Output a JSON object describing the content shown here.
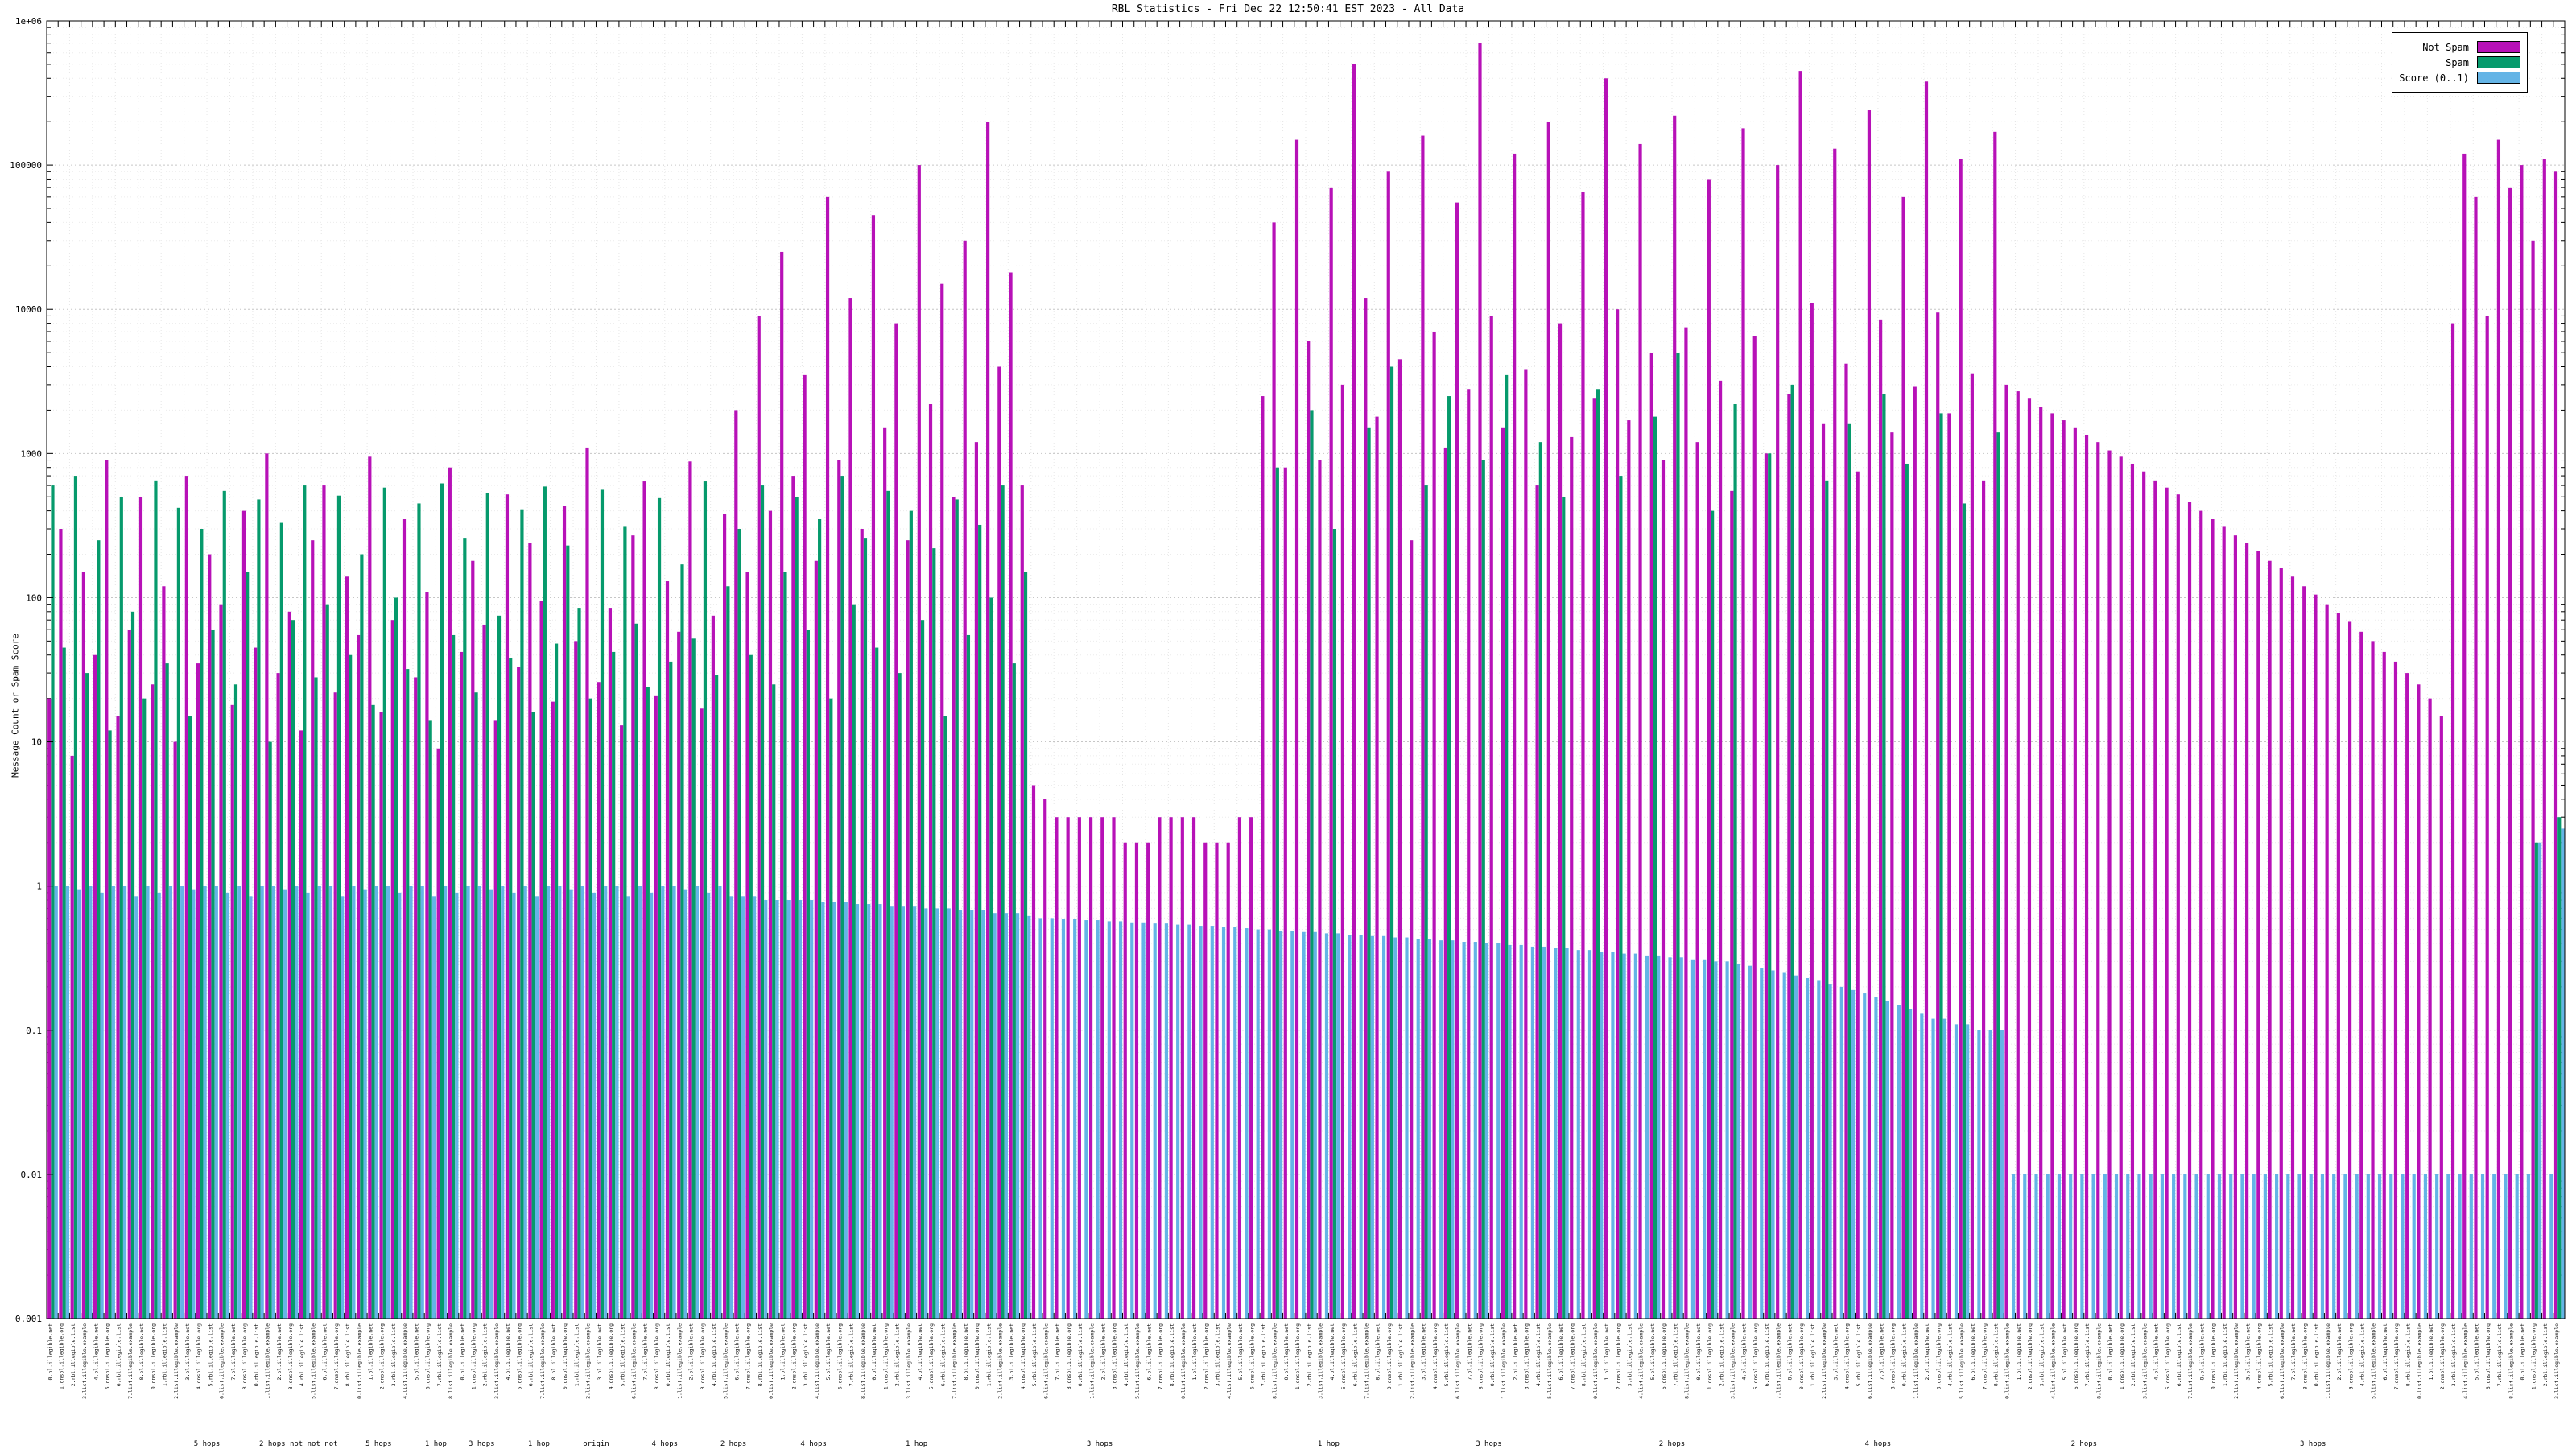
{
  "chart_data": {
    "type": "bar",
    "scale": "log",
    "title": "RBL Statistics - Fri Dec 22 12:50:41 EST 2023 - All Data",
    "ylabel": "Message Count or Spam Score",
    "xlabel": "",
    "ylim": [
      0.001,
      1000000
    ],
    "yticks": [
      "1e+06",
      "100000",
      "10000",
      "1000",
      "100",
      "10",
      "1",
      "0.1",
      "0.01",
      "0.001"
    ],
    "grid": "dotted",
    "legend_position": "top-right",
    "legend": [
      {
        "label": "Not Spam"
      },
      {
        "label": "Spam"
      },
      {
        "label": "Score (0..1)"
      }
    ],
    "x_tick_labels": {
      "legible": false,
      "placeholders": [
        "bl.illegible.net",
        "dnsbl.illegible.org",
        "rbl.illegible.list",
        "list.illegible.example"
      ]
    },
    "sub_labels": [
      {
        "text": "5 hops",
        "i": 14
      },
      {
        "text": "2 hops not not not",
        "i": 22
      },
      {
        "text": "5 hops",
        "i": 29
      },
      {
        "text": "1 hop",
        "i": 34
      },
      {
        "text": "3 hops",
        "i": 38
      },
      {
        "text": "1 hop",
        "i": 43
      },
      {
        "text": "origin",
        "i": 48
      },
      {
        "text": "4 hops",
        "i": 54
      },
      {
        "text": "2 hops",
        "i": 60
      },
      {
        "text": "4 hops",
        "i": 67
      },
      {
        "text": "1 hop",
        "i": 76
      },
      {
        "text": "3 hops",
        "i": 92
      },
      {
        "text": "1 hop",
        "i": 112
      },
      {
        "text": "3 hops",
        "i": 126
      },
      {
        "text": "2 hops",
        "i": 142
      },
      {
        "text": "4 hops",
        "i": 160
      },
      {
        "text": "2 hops",
        "i": 178
      },
      {
        "text": "3 hops",
        "i": 198
      }
    ],
    "series": [
      {
        "name": "Not Spam",
        "color": "#b711b7",
        "values": [
          20,
          300,
          8,
          150,
          40,
          900,
          15,
          60,
          500,
          25,
          120,
          10,
          700,
          35,
          200,
          90,
          18,
          400,
          45,
          1000,
          30,
          80,
          12,
          250,
          600,
          22,
          140,
          55,
          950,
          16,
          70,
          350,
          28,
          110,
          9,
          800,
          42,
          180,
          65,
          14,
          520,
          33,
          240,
          95,
          19,
          430,
          50,
          1100,
          26,
          85,
          13,
          270,
          640,
          21,
          130,
          58,
          880,
          17,
          75,
          380,
          2000,
          150,
          9000,
          400,
          25000,
          700,
          3500,
          180,
          60000,
          900,
          12000,
          300,
          45000,
          1500,
          8000,
          250,
          100000,
          2200,
          15000,
          500,
          30000,
          1200,
          200000,
          4000,
          18000,
          600,
          5,
          4,
          3,
          3,
          3,
          3,
          3,
          3,
          2,
          2,
          2,
          3,
          3,
          3,
          3,
          2,
          2,
          2,
          3,
          3,
          2500,
          40000,
          800,
          150000,
          6000,
          900,
          70000,
          3000,
          500000,
          12000,
          1800,
          90000,
          4500,
          250,
          160000,
          7000,
          1100,
          55000,
          2800,
          700000,
          9000,
          1500,
          120000,
          3800,
          600,
          200000,
          8000,
          1300,
          65000,
          2400,
          400000,
          10000,
          1700,
          140000,
          5000,
          900,
          220000,
          7500,
          1200,
          80000,
          3200,
          550,
          180000,
          6500,
          1000,
          100000,
          2600,
          450000,
          11000,
          1600,
          130000,
          4200,
          750,
          240000,
          8500,
          1400,
          60000,
          2900,
          380000,
          9500,
          1900,
          110000,
          3600,
          650,
          170000,
          3000,
          2700,
          2400,
          2100,
          1900,
          1700,
          1500,
          1350,
          1200,
          1050,
          950,
          850,
          750,
          650,
          580,
          520,
          460,
          400,
          350,
          310,
          270,
          240,
          210,
          180,
          160,
          140,
          120,
          105,
          90,
          78,
          68,
          58,
          50,
          42,
          36,
          30,
          25,
          20,
          15,
          8000,
          120000,
          60000,
          9000,
          150000,
          70000,
          100000,
          30000,
          110000,
          90000
        ]
      },
      {
        "name": "Spam",
        "color": "#069a6c",
        "values": [
          600,
          45,
          700,
          30,
          250,
          12,
          500,
          80,
          20,
          650,
          35,
          420,
          15,
          300,
          60,
          550,
          25,
          150,
          480,
          10,
          330,
          70,
          600,
          28,
          90,
          510,
          40,
          200,
          18,
          580,
          100,
          32,
          450,
          14,
          620,
          55,
          260,
          22,
          530,
          75,
          38,
          410,
          16,
          590,
          48,
          230,
          85,
          20,
          560,
          42,
          310,
          66,
          24,
          490,
          36,
          170,
          52,
          640,
          29,
          120,
          300,
          40,
          600,
          25,
          150,
          500,
          60,
          350,
          20,
          700,
          90,
          260,
          45,
          550,
          30,
          400,
          70,
          220,
          15,
          480,
          55,
          320,
          100,
          600,
          35,
          150,
          0,
          0,
          0,
          0,
          0,
          0,
          0,
          0,
          0,
          0,
          0,
          0,
          0,
          0,
          0,
          0,
          0,
          0,
          0,
          0,
          0,
          800,
          0,
          0,
          2000,
          0,
          300,
          0,
          0,
          1500,
          0,
          4000,
          0,
          0,
          600,
          0,
          2500,
          0,
          0,
          900,
          0,
          3500,
          0,
          0,
          1200,
          0,
          500,
          0,
          0,
          2800,
          0,
          700,
          0,
          0,
          1800,
          0,
          5000,
          0,
          0,
          400,
          0,
          2200,
          0,
          0,
          1000,
          0,
          3000,
          0,
          0,
          650,
          0,
          1600,
          0,
          0,
          2600,
          0,
          850,
          0,
          0,
          1900,
          0,
          450,
          0,
          0,
          1400,
          0,
          0,
          0,
          0,
          0,
          0,
          0,
          0,
          0,
          0,
          0,
          0,
          0,
          0,
          0,
          0,
          0,
          0,
          0,
          0,
          0,
          0,
          0,
          0,
          0,
          0,
          0,
          0,
          0,
          0,
          0,
          0,
          0,
          0,
          0,
          0,
          0,
          0,
          0,
          0,
          0,
          0,
          0,
          0,
          0,
          0,
          2,
          0,
          3
        ]
      },
      {
        "name": "Score (0..1)",
        "color": "#64b4e6",
        "values": [
          1,
          1,
          0.95,
          1,
          0.9,
          1,
          1,
          0.85,
          1,
          0.9,
          1,
          1,
          0.95,
          1,
          1,
          0.9,
          1,
          0.85,
          1,
          1,
          0.95,
          1,
          0.9,
          1,
          1,
          0.85,
          1,
          0.95,
          1,
          1,
          0.9,
          1,
          1,
          0.85,
          1,
          0.9,
          1,
          1,
          0.95,
          1,
          0.9,
          1,
          0.85,
          1,
          1,
          0.95,
          1,
          0.9,
          1,
          1,
          0.85,
          1,
          0.9,
          1,
          1,
          0.95,
          1,
          0.9,
          1,
          0.85,
          0.85,
          0.85,
          0.8,
          0.8,
          0.8,
          0.8,
          0.8,
          0.78,
          0.78,
          0.78,
          0.75,
          0.75,
          0.75,
          0.72,
          0.72,
          0.72,
          0.7,
          0.7,
          0.7,
          0.68,
          0.68,
          0.68,
          0.65,
          0.65,
          0.65,
          0.62,
          0.6,
          0.6,
          0.59,
          0.59,
          0.58,
          0.58,
          0.57,
          0.57,
          0.56,
          0.56,
          0.55,
          0.55,
          0.54,
          0.54,
          0.53,
          0.53,
          0.52,
          0.52,
          0.51,
          0.5,
          0.5,
          0.49,
          0.49,
          0.48,
          0.48,
          0.47,
          0.47,
          0.46,
          0.46,
          0.45,
          0.45,
          0.44,
          0.44,
          0.43,
          0.43,
          0.42,
          0.42,
          0.41,
          0.41,
          0.4,
          0.4,
          0.39,
          0.39,
          0.38,
          0.38,
          0.37,
          0.37,
          0.36,
          0.36,
          0.35,
          0.35,
          0.34,
          0.34,
          0.33,
          0.33,
          0.32,
          0.32,
          0.31,
          0.31,
          0.3,
          0.3,
          0.29,
          0.28,
          0.27,
          0.26,
          0.25,
          0.24,
          0.23,
          0.22,
          0.21,
          0.2,
          0.19,
          0.18,
          0.17,
          0.16,
          0.15,
          0.14,
          0.13,
          0.12,
          0.12,
          0.11,
          0.11,
          0.1,
          0.1,
          0.1,
          0.01,
          0.01,
          0.01,
          0.01,
          0.01,
          0.01,
          0.01,
          0.01,
          0.01,
          0.01,
          0.01,
          0.01,
          0.01,
          0.01,
          0.01,
          0.01,
          0.01,
          0.01,
          0.01,
          0.01,
          0.01,
          0.01,
          0.01,
          0.01,
          0.01,
          0.01,
          0.01,
          0.01,
          0.01,
          0.01,
          0.01,
          0.01,
          0.01,
          0.01,
          0.01,
          0.01,
          0.01,
          0.01,
          0.01,
          0.01,
          0.01,
          0.01,
          0.01,
          0.01,
          0.01,
          0.01,
          2,
          0.01,
          2.5
        ]
      }
    ]
  }
}
